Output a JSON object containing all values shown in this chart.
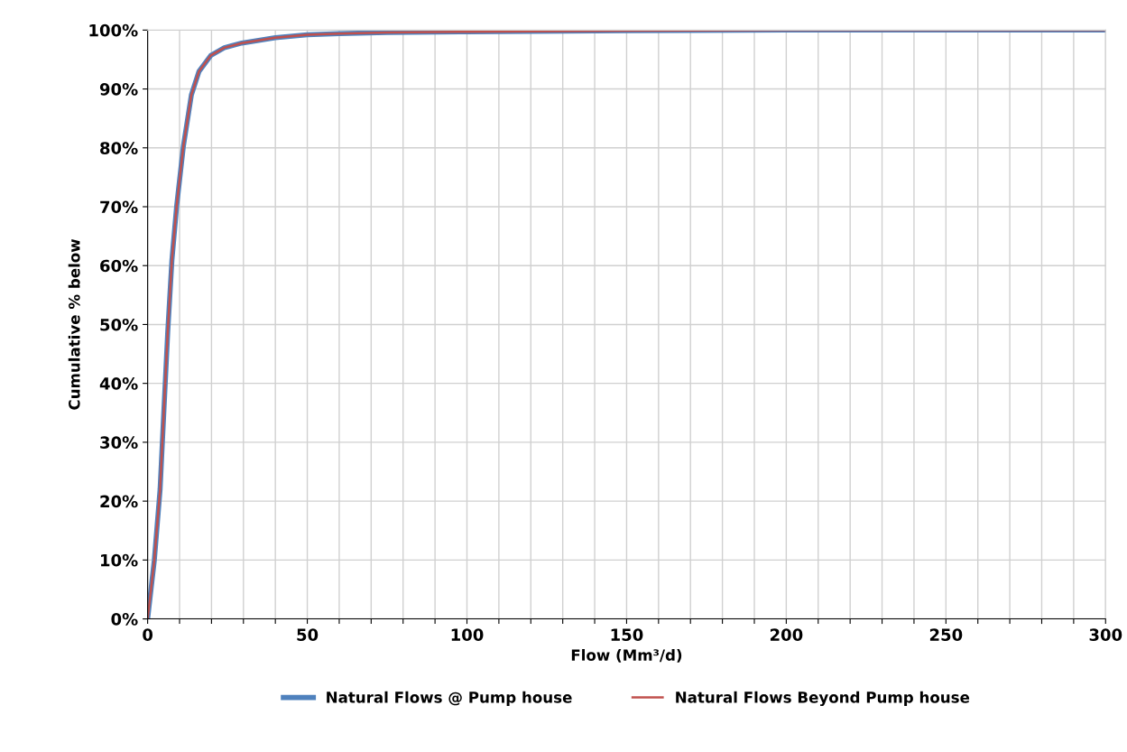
{
  "chart_data": {
    "type": "line",
    "xlabel": "Flow (Mm³/d)",
    "ylabel": "Cumulative % below",
    "x": [
      0,
      2.1,
      3.9,
      5.1,
      6.3,
      7.6,
      9.1,
      11.2,
      13.7,
      16.1,
      19.8,
      24,
      29.5,
      40,
      50,
      60,
      75,
      100,
      150,
      200,
      300
    ],
    "series": [
      {
        "name": "Natural Flows @ Pump house",
        "color": "#4f81bd",
        "values": [
          0,
          10,
          22,
          35.5,
          48.8,
          60.9,
          70.2,
          80.3,
          89,
          93,
          95.7,
          97,
          97.8,
          98.7,
          99.2,
          99.4,
          99.6,
          99.7,
          99.9,
          100,
          100
        ]
      },
      {
        "name": "Natural Flows Beyond Pump house",
        "color": "#c0504d",
        "values": [
          0,
          10,
          22,
          35.5,
          48.8,
          60.9,
          70.2,
          80.3,
          89,
          93,
          95.7,
          97,
          97.8,
          98.7,
          99.2,
          99.4,
          99.6,
          99.7,
          99.9,
          100,
          100
        ]
      }
    ],
    "xlim": [
      0,
      300
    ],
    "xticks": [
      0,
      {
        "value": 10,
        "label": null
      },
      {
        "value": 20,
        "label": null
      },
      {
        "value": 30,
        "label": null
      },
      {
        "value": 40,
        "label": null
      },
      50,
      {
        "value": 60,
        "label": null
      },
      {
        "value": 70,
        "label": null
      },
      {
        "value": 80,
        "label": null
      },
      {
        "value": 90,
        "label": null
      },
      100,
      {
        "value": 110,
        "label": null
      },
      {
        "value": 120,
        "label": null
      },
      {
        "value": 130,
        "label": null
      },
      {
        "value": 140,
        "label": null
      },
      150,
      {
        "value": 160,
        "label": null
      },
      {
        "value": 170,
        "label": null
      },
      {
        "value": 180,
        "label": null
      },
      {
        "value": 190,
        "label": null
      },
      200,
      {
        "value": 210,
        "label": null
      },
      {
        "value": 220,
        "label": null
      },
      {
        "value": 230,
        "label": null
      },
      {
        "value": 240,
        "label": null
      },
      250,
      {
        "value": 260,
        "label": null
      },
      {
        "value": 270,
        "label": null
      },
      {
        "value": 280,
        "label": null
      },
      {
        "value": 290,
        "label": null
      },
      300
    ],
    "ylim": [
      0,
      100
    ],
    "yticks": [
      {
        "value": 0,
        "label": "0%"
      },
      {
        "value": 10,
        "label": "10%"
      },
      {
        "value": 20,
        "label": "20%"
      },
      {
        "value": 30,
        "label": "30%"
      },
      {
        "value": 40,
        "label": "40%"
      },
      {
        "value": 50,
        "label": "50%"
      },
      {
        "value": 60,
        "label": "60%"
      },
      {
        "value": 70,
        "label": "70%"
      },
      {
        "value": 80,
        "label": "80%"
      },
      {
        "value": 90,
        "label": "90%"
      },
      {
        "value": 100,
        "label": "100%"
      }
    ],
    "grid": true,
    "legend": "bottom"
  }
}
